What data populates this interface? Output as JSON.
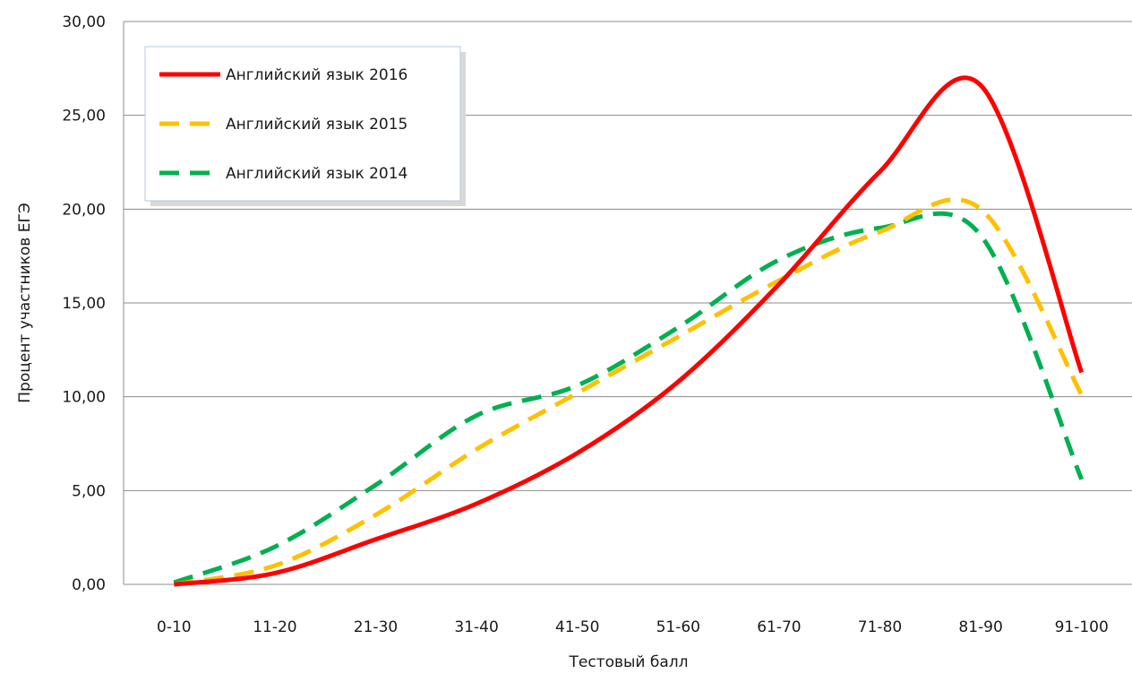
{
  "chart_data": {
    "type": "line",
    "title": "",
    "xlabel": "Тестовый балл",
    "ylabel": "Процент участников ЕГЭ",
    "categories": [
      "0-10",
      "11-20",
      "21-30",
      "31-40",
      "41-50",
      "51-60",
      "61-70",
      "71-80",
      "81-90",
      "91-100"
    ],
    "ylim": [
      0,
      30
    ],
    "yticks": [
      "0,00",
      "5,00",
      "10,00",
      "15,00",
      "20,00",
      "25,00",
      "30,00"
    ],
    "grid": true,
    "legend_position": "top-left",
    "series": [
      {
        "name": "Английский язык 2016",
        "color": "#ff0000",
        "style": "solid",
        "values": [
          0.0,
          0.6,
          2.4,
          4.3,
          7.0,
          10.8,
          16.0,
          22.0,
          26.6,
          11.3
        ]
      },
      {
        "name": "Английский язык 2015",
        "color": "#ffc000",
        "style": "dashed",
        "values": [
          0.0,
          1.0,
          3.7,
          7.2,
          10.2,
          13.2,
          16.2,
          18.8,
          20.0,
          10.1
        ]
      },
      {
        "name": "Английский язык 2014",
        "color": "#00b050",
        "style": "dashed",
        "values": [
          0.1,
          2.0,
          5.3,
          9.0,
          10.6,
          13.7,
          17.3,
          19.0,
          18.6,
          5.6
        ]
      }
    ]
  }
}
